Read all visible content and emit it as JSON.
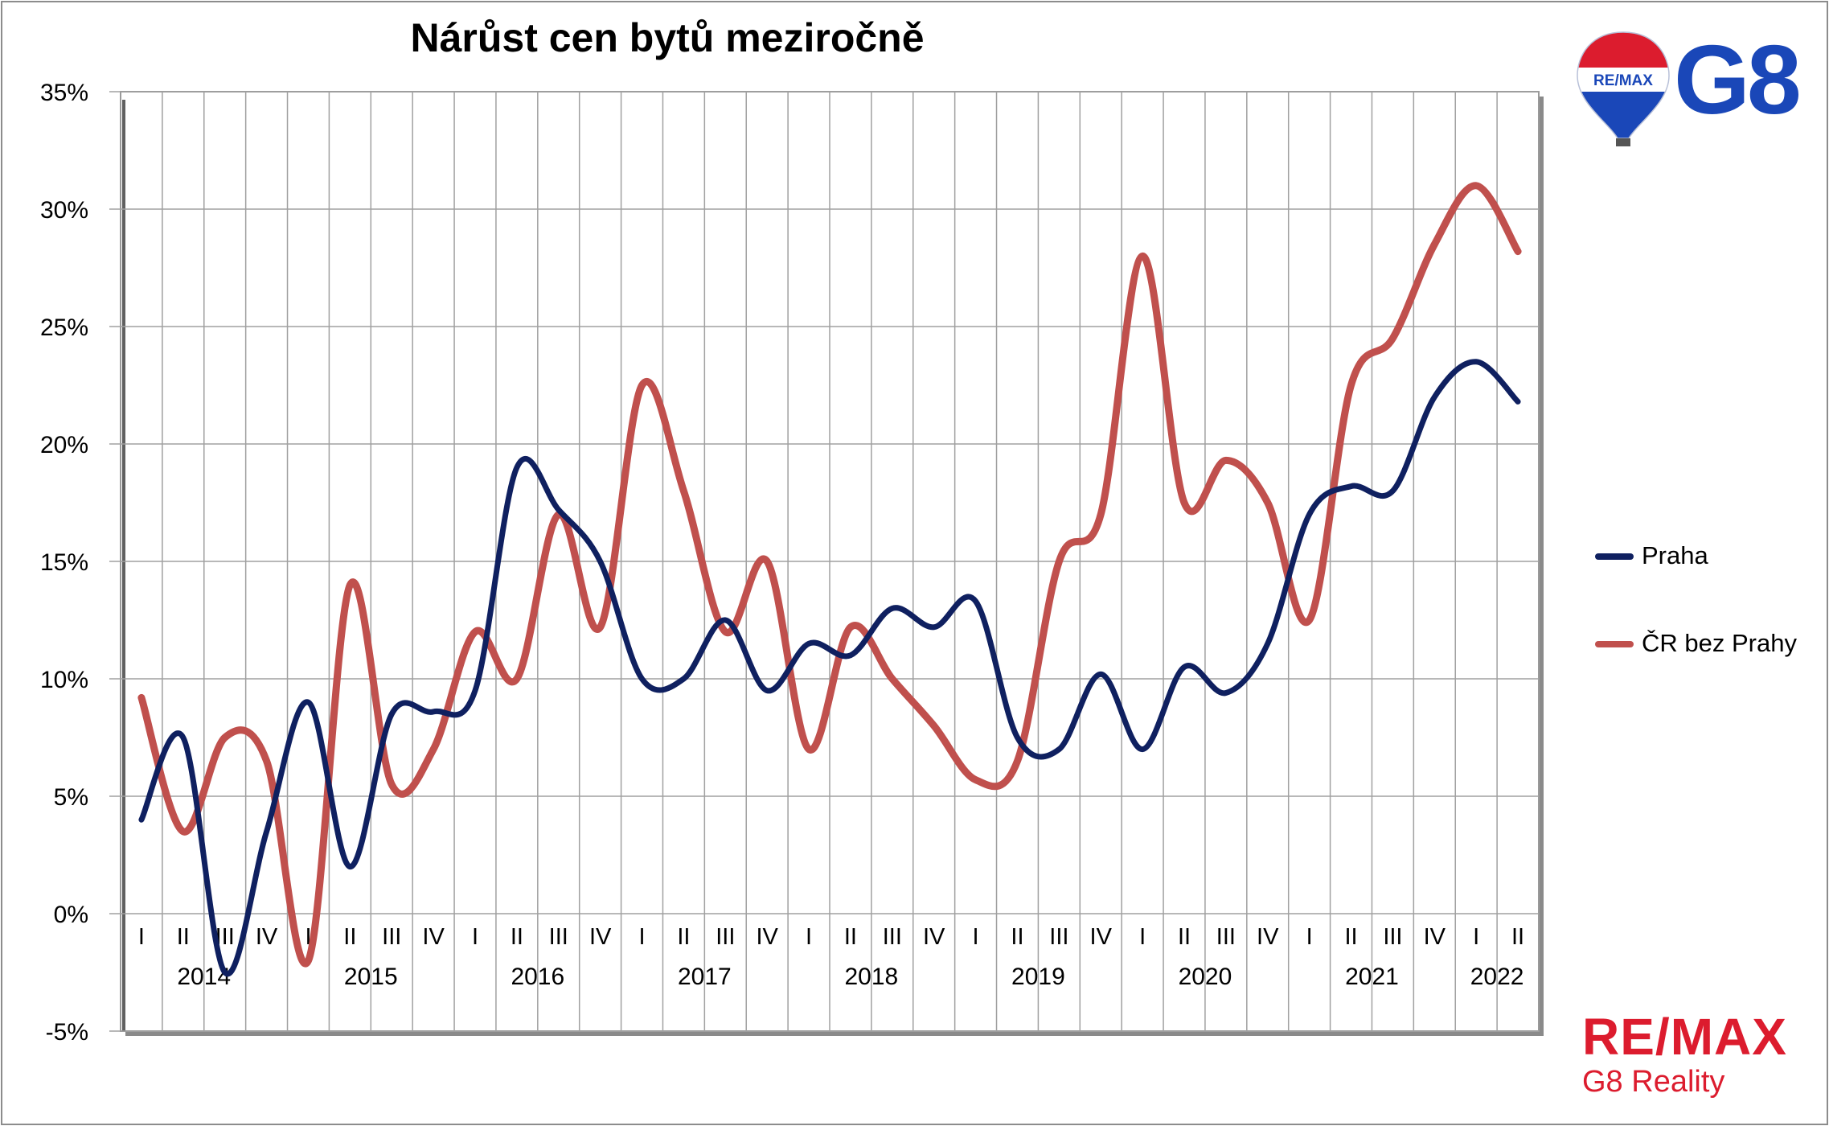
{
  "chart_data": {
    "type": "line",
    "title": "Nárůst cen bytů meziročně",
    "ylim": [
      -5,
      35
    ],
    "yticks": [
      "-5%",
      "0%",
      "5%",
      "10%",
      "15%",
      "20%",
      "25%",
      "30%",
      "35%"
    ],
    "ytick_values": [
      -5,
      0,
      5,
      10,
      15,
      20,
      25,
      30,
      35
    ],
    "quarters": [
      "I",
      "II",
      "III",
      "IV",
      "I",
      "II",
      "III",
      "IV",
      "I",
      "II",
      "III",
      "IV",
      "I",
      "II",
      "III",
      "IV",
      "I",
      "II",
      "III",
      "IV",
      "I",
      "II",
      "III",
      "IV",
      "I",
      "II",
      "III",
      "IV",
      "I",
      "II",
      "III",
      "IV",
      "I",
      "II"
    ],
    "years": [
      {
        "label": "2014",
        "start": 0
      },
      {
        "label": "2015",
        "start": 4
      },
      {
        "label": "2016",
        "start": 8
      },
      {
        "label": "2017",
        "start": 12
      },
      {
        "label": "2018",
        "start": 16
      },
      {
        "label": "2019",
        "start": 20
      },
      {
        "label": "2020",
        "start": 24
      },
      {
        "label": "2021",
        "start": 28
      },
      {
        "label": "2022",
        "start": 32
      }
    ],
    "grid": true,
    "legend_position": "right",
    "series": [
      {
        "name": "Praha",
        "color": "#0f2060",
        "values": [
          4.0,
          7.5,
          -2.5,
          3.5,
          9.0,
          2.0,
          8.5,
          8.6,
          9.5,
          19.0,
          17.2,
          15.0,
          10.0,
          10.0,
          12.5,
          9.5,
          11.5,
          11.0,
          13.0,
          12.2,
          13.3,
          7.5,
          7.0,
          10.2,
          7.0,
          10.5,
          9.4,
          11.5,
          17.0,
          18.2,
          18.0,
          22.0,
          23.5,
          21.8
        ]
      },
      {
        "name": "ČR bez Prahy",
        "color": "#c0504d",
        "values": [
          9.2,
          3.5,
          7.5,
          6.5,
          -2.0,
          14.0,
          5.5,
          7.0,
          12.0,
          10.0,
          17.0,
          12.2,
          22.5,
          18.0,
          12.0,
          15.0,
          7.0,
          12.2,
          10.0,
          8.0,
          5.7,
          6.5,
          15.0,
          17.0,
          28.0,
          17.5,
          19.3,
          17.5,
          12.5,
          22.5,
          24.5,
          28.5,
          31.0,
          28.2
        ]
      }
    ]
  },
  "brand": {
    "balloon_text": "RE/MAX",
    "g8": "G8",
    "name": "RE/MAX",
    "subtitle": "G8 Reality"
  }
}
